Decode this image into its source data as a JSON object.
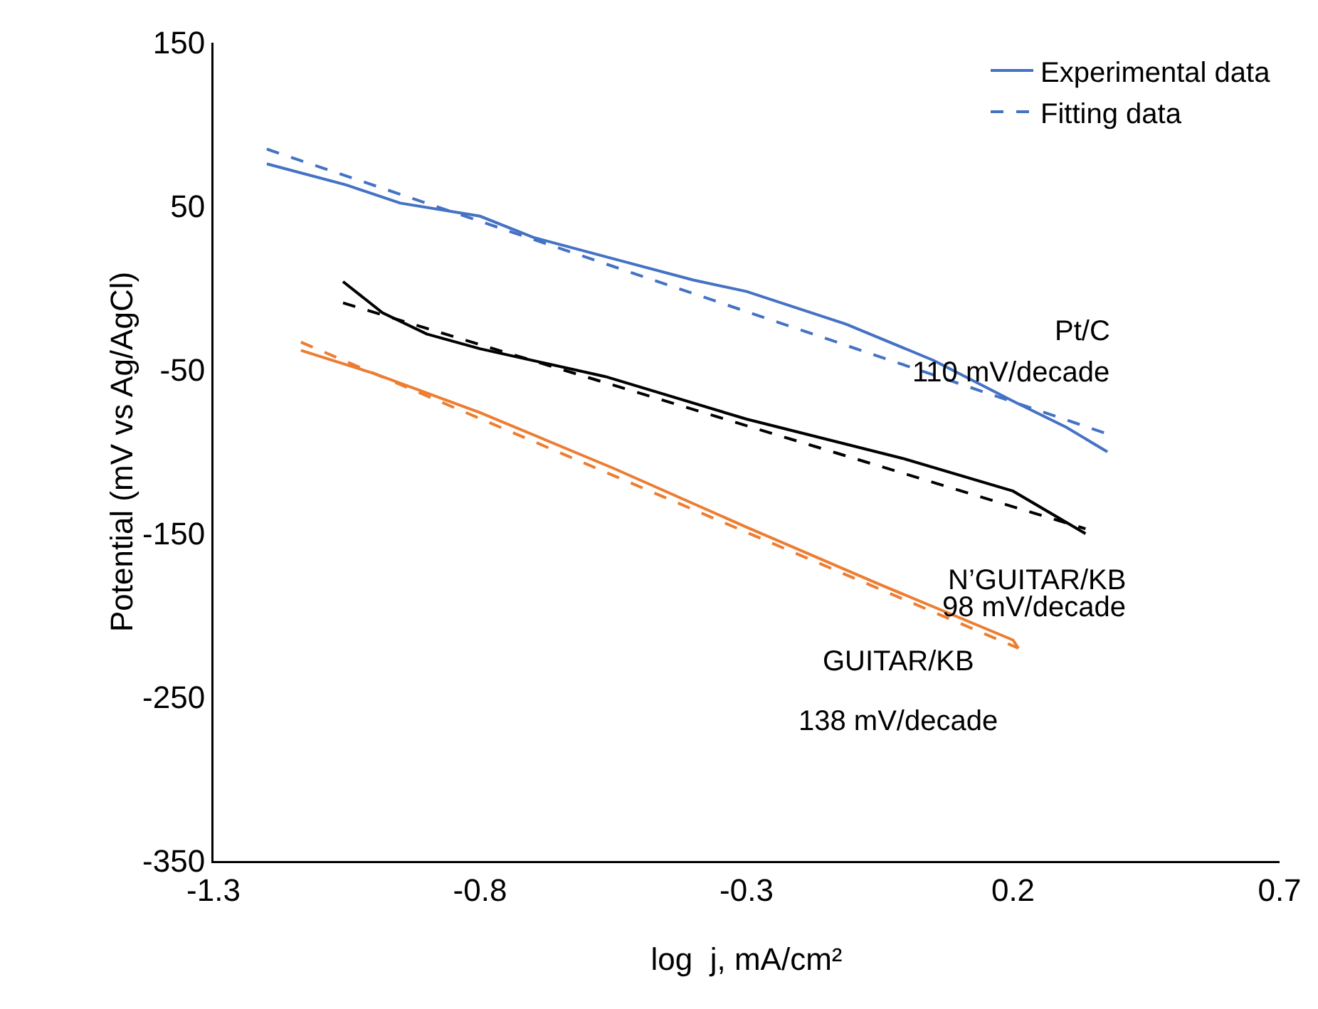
{
  "chart_data": {
    "type": "line",
    "xlabel": "log  j, mA/cm²",
    "ylabel": "Potential (mV vs Ag/AgCl)",
    "xlim": [
      -1.3,
      0.7
    ],
    "xticks": [
      -1.3,
      -0.8,
      -0.3,
      0.2,
      0.7
    ],
    "ylim": [
      -350,
      150
    ],
    "yticks": [
      -350,
      -250,
      -150,
      -50,
      50,
      150
    ],
    "grid": false,
    "legend": "top right",
    "marker": "none",
    "series": [
      {
        "name": "Experimental data",
        "color": "#4472c4",
        "line_style": "solid",
        "x": [
          -1.2,
          -1.05,
          -0.95,
          -0.8,
          -0.7,
          -0.55,
          -0.4,
          -0.3,
          -0.113,
          0.05,
          0.2,
          0.3,
          0.377
        ],
        "values": [
          76,
          63,
          52,
          44,
          31,
          18,
          5,
          -2,
          -22,
          -44,
          -69,
          -85,
          -100
        ]
      },
      {
        "name": "Fitting data",
        "color": "#4472c4",
        "line_style": "dashed",
        "x": [
          -1.2,
          0.377
        ],
        "values": [
          85,
          -89
        ]
      },
      {
        "color": "#000000",
        "line_style": "solid",
        "x": [
          -1.057,
          -0.983,
          -0.9,
          -0.8,
          -0.565,
          -0.3,
          -0.007,
          0.2,
          0.336
        ],
        "values": [
          4,
          -15,
          -28,
          -37,
          -54,
          -80,
          -104,
          -124,
          -150
        ]
      },
      {
        "color": "#000000",
        "line_style": "dashed",
        "x": [
          -1.057,
          0.336
        ],
        "values": [
          -9,
          -147
        ]
      },
      {
        "color": "#ed7d31",
        "line_style": "solid",
        "x": [
          -1.136,
          -1.0,
          -0.8,
          -0.55,
          -0.3,
          -0.05,
          0.2,
          0.21
        ],
        "values": [
          -38,
          -52,
          -76,
          -110,
          -146,
          -181,
          -215,
          -220
        ]
      },
      {
        "color": "#ed7d31",
        "line_style": "dashed",
        "x": [
          -1.136,
          0.21
        ],
        "values": [
          -33,
          -220
        ]
      }
    ],
    "annotations": [
      "Pt/C",
      "110 mV/decade",
      "N’GUITAR/KB",
      "98 mV/decade",
      "GUITAR/KB",
      "138 mV/decade"
    ]
  }
}
